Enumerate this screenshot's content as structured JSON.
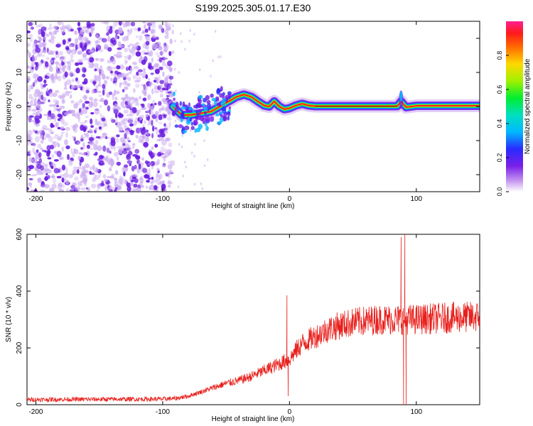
{
  "title": "S199.2025.305.01.17.E30",
  "colors": {
    "line": "#e8201c",
    "speckle_light": "#c9a8f0",
    "speckle_dark": "#6a1ce0",
    "axis": "#000000"
  },
  "chart_data": [
    {
      "type": "heatmap",
      "name": "spectrogram",
      "xlabel": "Height of straight line (km)",
      "ylabel": "Frequency (Hz)",
      "xlim": [
        -207,
        150
      ],
      "ylim": [
        -25,
        25
      ],
      "xticks": [
        -200,
        -100,
        0,
        100
      ],
      "yticks": [
        -20,
        -10,
        0,
        10,
        20
      ],
      "noise_region_x": [
        -207,
        -92
      ],
      "ridge": {
        "x": [
          -92,
          -85,
          -78,
          -70,
          -62,
          -55,
          -48,
          -42,
          -36,
          -30,
          -25,
          -20,
          -16,
          -12,
          -8,
          -4,
          0,
          5,
          10,
          15,
          20,
          30,
          40,
          50,
          60,
          70,
          80,
          85,
          88,
          92,
          100,
          110,
          120,
          130,
          140,
          150
        ],
        "freq": [
          0,
          -2.5,
          -2.5,
          -2,
          -1.5,
          0,
          1.5,
          2.8,
          3.5,
          2.8,
          1.5,
          0.3,
          0,
          1.5,
          0,
          -0.8,
          -0.5,
          0.3,
          0.8,
          0.3,
          0.1,
          0.1,
          0.1,
          0.1,
          0.1,
          0.1,
          0.1,
          0.1,
          1.5,
          -0.2,
          0.2,
          0.2,
          0.2,
          0.2,
          0.2,
          0.2
        ]
      },
      "colorbar": {
        "label": "Normalized spectral amplitude",
        "range": [
          0,
          1
        ],
        "ticks": [
          "0.0",
          "0.2",
          "0.4",
          "0.6",
          "0.8"
        ]
      }
    },
    {
      "type": "line",
      "name": "snr",
      "xlabel": "Height of straight line (km)",
      "ylabel": "SNR (10 * v/v)",
      "xlim": [
        -207,
        150
      ],
      "ylim": [
        0,
        600
      ],
      "xticks": [
        -200,
        -100,
        0,
        100
      ],
      "yticks": [
        0,
        200,
        400,
        600
      ],
      "trend": {
        "x": [
          -207,
          -100,
          -90,
          -80,
          -70,
          -60,
          -50,
          -40,
          -30,
          -20,
          -10,
          -5,
          0,
          5,
          10,
          20,
          30,
          40,
          50,
          60,
          70,
          80,
          88,
          95,
          100,
          120,
          150
        ],
        "y": [
          18,
          20,
          22,
          30,
          45,
          60,
          75,
          85,
          100,
          120,
          140,
          150,
          160,
          190,
          215,
          240,
          265,
          280,
          290,
          295,
          300,
          300,
          300,
          300,
          300,
          305,
          310
        ]
      },
      "spikes": [
        {
          "x": -2,
          "y": 385
        },
        {
          "x": -1,
          "y": 30
        },
        {
          "x": 88,
          "y": 590
        },
        {
          "x": 90,
          "y": 0
        },
        {
          "x": 91,
          "y": 600
        },
        {
          "x": 92,
          "y": 0
        }
      ]
    }
  ]
}
